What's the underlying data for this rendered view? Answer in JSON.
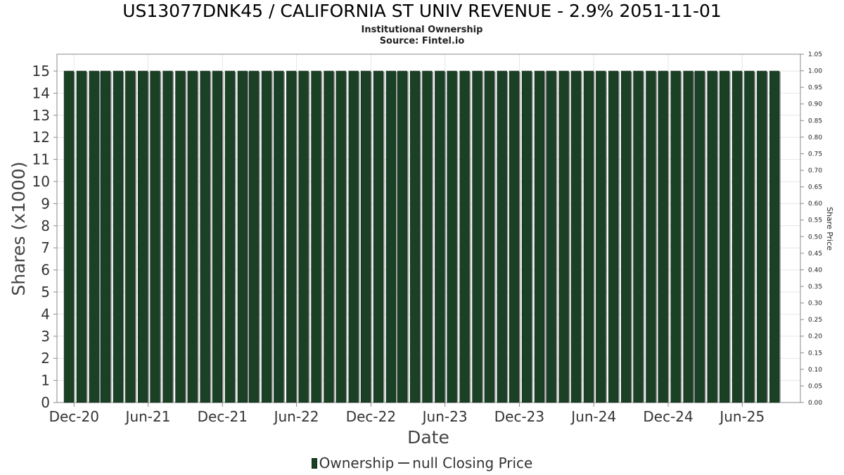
{
  "title": "US13077DNK45 / CALIFORNIA ST UNIV REVENUE - 2.9% 2051-11-01",
  "subtitle_1": "Institutional Ownership",
  "subtitle_2": "Source: Fintel.io",
  "legend": {
    "ownership_label": "Ownership",
    "price_label": "null Closing Price"
  },
  "colors": {
    "bar": "#1a4025",
    "bar_shadow": "#9a9a9a",
    "grid": "#e6e6e6",
    "plot_border": "#888888"
  },
  "chart_data": {
    "type": "bar",
    "title": "US13077DNK45 / CALIFORNIA ST UNIV REVENUE - 2.9% 2051-11-01",
    "xlabel": "Date",
    "ylabel": "Shares (x1000)",
    "ylabel_right": "Share Price",
    "ylim": [
      0,
      15
    ],
    "ylim_right": [
      0,
      1.05
    ],
    "x_range": [
      "2020-10-20",
      "2025-10-22"
    ],
    "yticks": [
      0,
      1,
      2,
      3,
      4,
      5,
      6,
      7,
      8,
      9,
      10,
      11,
      12,
      13,
      14,
      15
    ],
    "yticks_right": [
      "0.00",
      "0.05",
      "0.10",
      "0.15",
      "0.20",
      "0.25",
      "0.30",
      "0.35",
      "0.40",
      "0.45",
      "0.50",
      "0.55",
      "0.60",
      "0.65",
      "0.70",
      "0.75",
      "0.80",
      "0.85",
      "0.90",
      "0.95",
      "1.00",
      "1.05"
    ],
    "xticks": [
      {
        "label": "Dec-20",
        "date": "2020-12-01"
      },
      {
        "label": "Jun-21",
        "date": "2021-06-01"
      },
      {
        "label": "Dec-21",
        "date": "2021-12-01"
      },
      {
        "label": "Jun-22",
        "date": "2022-06-01"
      },
      {
        "label": "Dec-22",
        "date": "2022-12-01"
      },
      {
        "label": "Jun-23",
        "date": "2023-06-01"
      },
      {
        "label": "Dec-23",
        "date": "2023-12-01"
      },
      {
        "label": "Jun-24",
        "date": "2024-06-01"
      },
      {
        "label": "Dec-24",
        "date": "2024-12-01"
      },
      {
        "label": "Jun-25",
        "date": "2025-06-01"
      }
    ],
    "series": [
      {
        "name": "Ownership",
        "x": [
          "2020-11-30",
          "2020-12-31",
          "2021-01-31",
          "2021-02-28",
          "2021-03-31",
          "2021-04-30",
          "2021-05-31",
          "2021-06-30",
          "2021-07-31",
          "2021-08-31",
          "2021-09-30",
          "2021-10-31",
          "2021-11-30",
          "2021-12-31",
          "2022-01-31",
          "2022-02-28",
          "2022-03-31",
          "2022-04-30",
          "2022-05-31",
          "2022-06-30",
          "2022-07-31",
          "2022-08-31",
          "2022-09-30",
          "2022-10-31",
          "2022-11-30",
          "2022-12-31",
          "2023-01-31",
          "2023-02-28",
          "2023-03-31",
          "2023-04-30",
          "2023-05-31",
          "2023-06-30",
          "2023-07-31",
          "2023-08-31",
          "2023-09-30",
          "2023-10-31",
          "2023-11-30",
          "2023-12-31",
          "2024-01-31",
          "2024-02-29",
          "2024-03-31",
          "2024-04-30",
          "2024-05-31",
          "2024-06-30",
          "2024-07-31",
          "2024-08-31",
          "2024-09-30",
          "2024-10-31",
          "2024-11-30",
          "2024-12-31",
          "2025-01-31",
          "2025-02-28",
          "2025-03-31",
          "2025-04-30",
          "2025-05-31",
          "2025-06-30",
          "2025-07-31",
          "2025-08-31"
        ],
        "values": [
          15,
          15,
          15,
          15,
          15,
          15,
          15,
          15,
          15,
          15,
          15,
          15,
          15,
          15,
          15,
          15,
          15,
          15,
          15,
          15,
          15,
          15,
          15,
          15,
          15,
          15,
          15,
          15,
          15,
          15,
          15,
          15,
          15,
          15,
          15,
          15,
          15,
          15,
          15,
          15,
          15,
          15,
          15,
          15,
          15,
          15,
          15,
          15,
          15,
          15,
          15,
          15,
          15,
          15,
          15,
          15,
          15,
          15
        ]
      }
    ],
    "grid": true,
    "legend_position": "bottom-center"
  }
}
